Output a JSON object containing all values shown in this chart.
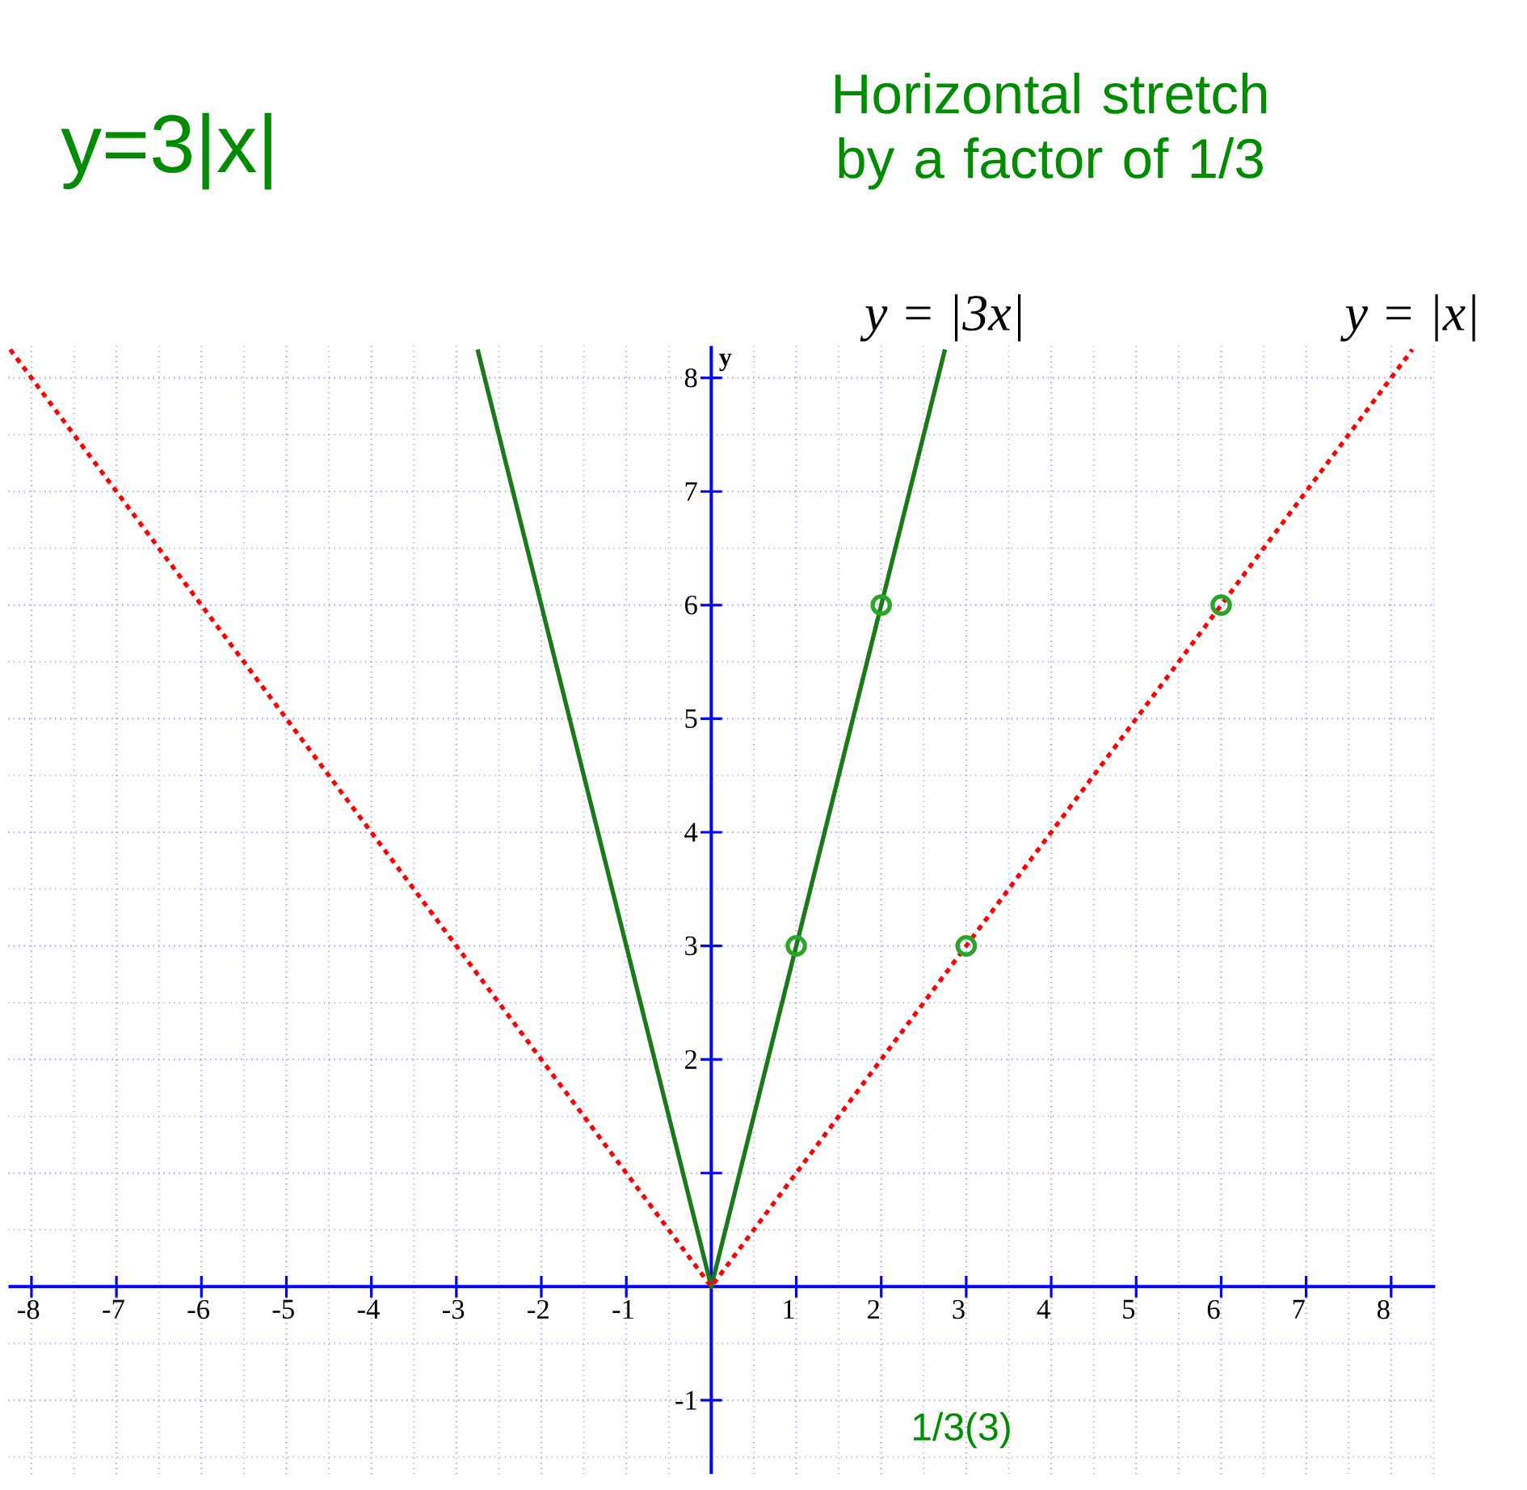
{
  "chart_data": {
    "type": "line",
    "xlabel": null,
    "ylabel": "y",
    "xlim": [
      -8.27,
      8.52
    ],
    "ylim": [
      -1.65,
      8.28
    ],
    "xticks": [
      -8,
      -7,
      -6,
      -5,
      -4,
      -3,
      -2,
      -1,
      1,
      2,
      3,
      4,
      5,
      6,
      7,
      8
    ],
    "yticks": [
      -1,
      {
        "value": 1,
        "label": null
      },
      2,
      3,
      4,
      5,
      6,
      7,
      8
    ],
    "grid": true,
    "series": [
      {
        "name": "y = |3x|",
        "color": "#1a7a1a",
        "line_style": "solid",
        "x": [
          -2.75,
          0,
          2.75
        ],
        "values": [
          8.25,
          0,
          8.25
        ]
      },
      {
        "name": "y = |x|",
        "color": "#ff0000",
        "line_style": "dotted",
        "x": [
          -8.25,
          0,
          8.25
        ],
        "values": [
          8.25,
          0,
          8.25
        ]
      },
      {
        "type": "scatter",
        "color": "#2aa52a",
        "marker": "circle",
        "x": [
          1,
          2,
          3,
          6
        ],
        "values": [
          3,
          6,
          3,
          6
        ]
      }
    ],
    "annotations": [
      "y=3|x|",
      "Horizontal stretch by a factor of 1/3",
      "1/3(3)"
    ]
  }
}
